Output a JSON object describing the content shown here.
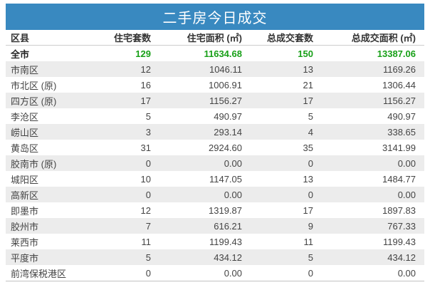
{
  "title": "二手房今日成交",
  "colors": {
    "title_bar_bg": "#3989c0",
    "title_text": "#ffffff",
    "total_value_green": "#18a018",
    "alt_row_bg": "#ececec",
    "body_text": "#444444",
    "header_text": "#333333"
  },
  "chart_data": {
    "type": "table",
    "title": "二手房今日成交",
    "columns": [
      "区县",
      "住宅套数",
      "住宅面积 (㎡)",
      "总成交套数",
      "总成交面积 (㎡)"
    ],
    "rows": [
      [
        "全市",
        "129",
        "11634.68",
        "150",
        "13387.06"
      ],
      [
        "市南区",
        "12",
        "1046.11",
        "13",
        "1169.26"
      ],
      [
        "市北区 (原)",
        "16",
        "1006.91",
        "21",
        "1306.44"
      ],
      [
        "四方区 (原)",
        "17",
        "1156.27",
        "17",
        "1156.27"
      ],
      [
        "李沧区",
        "5",
        "490.97",
        "5",
        "490.97"
      ],
      [
        "崂山区",
        "3",
        "293.14",
        "4",
        "338.65"
      ],
      [
        "黄岛区",
        "31",
        "2924.60",
        "35",
        "3141.99"
      ],
      [
        "胶南市 (原)",
        "0",
        "0.00",
        "0",
        "0.00"
      ],
      [
        "城阳区",
        "10",
        "1147.05",
        "13",
        "1484.77"
      ],
      [
        "高新区",
        "0",
        "0.00",
        "0",
        "0.00"
      ],
      [
        "即墨市",
        "12",
        "1319.87",
        "17",
        "1897.83"
      ],
      [
        "胶州市",
        "7",
        "616.21",
        "9",
        "767.33"
      ],
      [
        "莱西市",
        "11",
        "1199.43",
        "11",
        "1199.43"
      ],
      [
        "平度市",
        "5",
        "434.12",
        "5",
        "434.12"
      ],
      [
        "前湾保税港区",
        "0",
        "0.00",
        "0",
        "0.00"
      ]
    ],
    "total_row_index": 0,
    "layout": {
      "zebra_striping": true,
      "first_column_align": "left",
      "numeric_columns_align": "right",
      "total_row_style": "bold, green numbers"
    }
  }
}
